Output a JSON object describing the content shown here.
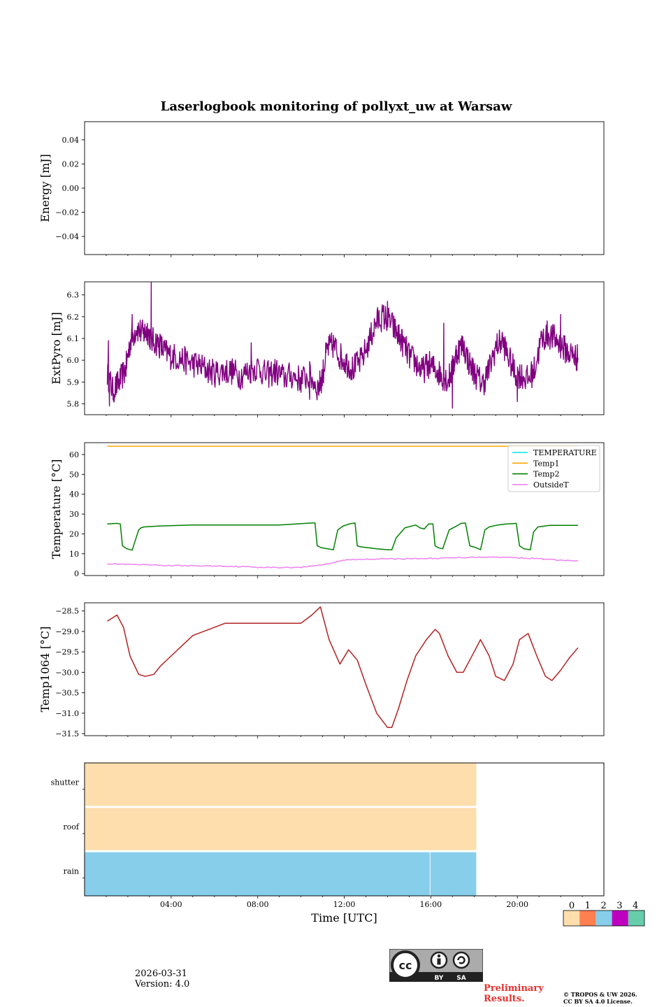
{
  "colors": {
    "temperature": "#00e5e5",
    "temp1": "#ffa500",
    "temp2": "#008000",
    "outsideT": "#ee82ee",
    "extpyro": "#800080",
    "temp1064": "#b22222",
    "status": [
      "#fddeac",
      "#ff7f50",
      "#87ceeb",
      "#bf00bf",
      "#66cdaa"
    ]
  },
  "chart_data": [
    {
      "type": "line",
      "title": "Laserlogbook monitoring of pollyxt_uw at Warsaw",
      "ylabel": "Energy [mJ]",
      "ylim": [
        -0.055,
        0.055
      ],
      "yticks": [
        "0.04",
        "0.02",
        "0.00",
        "−0.02",
        "−0.04"
      ],
      "yvals": [
        0.04,
        0.02,
        0.0,
        -0.02,
        -0.04
      ],
      "xlim": [
        0,
        24
      ],
      "series": []
    },
    {
      "type": "line",
      "ylabel": "ExtPyro [mJ]",
      "ylim": [
        5.75,
        6.36
      ],
      "yticks": [
        "6.3",
        "6.2",
        "6.1",
        "6.0",
        "5.9",
        "5.8"
      ],
      "yvals": [
        6.3,
        6.2,
        6.1,
        6.0,
        5.9,
        5.8
      ],
      "xlim": [
        0,
        24
      ],
      "series": [
        {
          "name": "ExtPyro",
          "x": [
            1.05,
            1.3,
            1.6,
            1.9,
            2.1,
            2.4,
            2.7,
            2.9,
            3.1,
            3.4,
            3.7,
            4.0,
            4.4,
            4.8,
            5.2,
            5.6,
            6.0,
            6.4,
            6.8,
            7.2,
            7.6,
            8.0,
            8.4,
            8.8,
            9.2,
            9.6,
            10.0,
            10.4,
            10.8,
            11.0,
            11.2,
            11.5,
            11.8,
            12.1,
            12.4,
            12.8,
            13.2,
            13.5,
            13.8,
            14.1,
            14.4,
            14.7,
            15.0,
            15.3,
            15.6,
            15.9,
            16.2,
            16.5,
            16.8,
            17.0,
            17.2,
            17.5,
            17.8,
            18.1,
            18.4,
            18.7,
            19.0,
            19.3,
            19.6,
            19.9,
            20.2,
            20.5,
            20.8,
            21.1,
            21.4,
            21.7,
            22.0,
            22.3,
            22.6,
            22.8
          ],
          "values": [
            5.94,
            5.86,
            5.9,
            5.96,
            6.08,
            6.15,
            6.12,
            6.14,
            6.09,
            6.08,
            6.04,
            6.02,
            6.01,
            5.99,
            5.98,
            5.96,
            5.94,
            5.95,
            5.95,
            5.93,
            5.95,
            5.97,
            5.93,
            5.95,
            5.92,
            5.93,
            5.91,
            5.93,
            5.87,
            5.93,
            6.05,
            6.07,
            6.02,
            5.99,
            5.96,
            6.0,
            6.1,
            6.18,
            6.2,
            6.18,
            6.13,
            6.08,
            6.02,
            5.99,
            5.95,
            5.98,
            5.96,
            5.93,
            5.91,
            5.96,
            6.04,
            6.07,
            5.98,
            5.93,
            5.89,
            5.96,
            6.06,
            6.09,
            6.01,
            5.94,
            5.93,
            5.91,
            5.96,
            6.09,
            6.12,
            6.1,
            6.07,
            6.04,
            6.02,
            6.01
          ],
          "spikes": [
            [
              3.08,
              6.36
            ],
            [
              1.15,
              5.79
            ],
            [
              1.35,
              5.81
            ],
            [
              14.0,
              6.27
            ],
            [
              17.0,
              5.78
            ],
            [
              20.0,
              5.81
            ],
            [
              1.1,
              6.09
            ],
            [
              2.2,
              6.21
            ],
            [
              22.0,
              6.21
            ],
            [
              16.6,
              6.17
            ],
            [
              10.4,
              5.82
            ],
            [
              7.7,
              6.08
            ]
          ]
        }
      ]
    },
    {
      "type": "line",
      "ylabel": "Temperature [°C]",
      "ylim": [
        -1,
        66
      ],
      "yticks": [
        "60",
        "50",
        "40",
        "30",
        "20",
        "10",
        "0"
      ],
      "yvals": [
        60,
        50,
        40,
        30,
        20,
        10,
        0
      ],
      "xlim": [
        0,
        24
      ],
      "legend": [
        "TEMPERATURE",
        "Temp1",
        "Temp2",
        "OutsideT"
      ],
      "legend_position": "upper right",
      "series": [
        {
          "name": "TEMPERATURE",
          "x": [],
          "values": []
        },
        {
          "name": "Temp1",
          "x": [
            1.05,
            22.8
          ],
          "values": [
            64.2,
            64.2
          ]
        },
        {
          "name": "Temp2",
          "x": [
            1.05,
            1.5,
            1.65,
            1.75,
            1.95,
            2.2,
            2.5,
            2.6,
            2.75,
            3.5,
            5.0,
            7.0,
            9.0,
            10.5,
            10.65,
            10.75,
            10.95,
            11.5,
            11.7,
            11.95,
            12.3,
            12.5,
            12.6,
            12.75,
            13.5,
            14.0,
            14.2,
            14.4,
            14.8,
            15.3,
            15.5,
            15.7,
            15.9,
            16.1,
            16.2,
            16.35,
            16.55,
            16.85,
            17.2,
            17.4,
            17.6,
            17.8,
            18.1,
            18.3,
            18.5,
            18.7,
            19.1,
            19.5,
            19.8,
            19.95,
            20.1,
            20.3,
            20.6,
            20.75,
            20.95,
            21.5,
            22.8
          ],
          "values": [
            25.0,
            25.3,
            25.0,
            14.0,
            12.5,
            11.8,
            22.0,
            23.0,
            23.5,
            24.0,
            24.5,
            24.5,
            24.5,
            25.5,
            25.5,
            14.0,
            13.0,
            12.0,
            22.0,
            24.0,
            25.2,
            25.5,
            14.0,
            13.5,
            12.5,
            12.0,
            12.0,
            18.0,
            23.0,
            24.5,
            23.0,
            22.5,
            25.0,
            25.0,
            14.0,
            13.0,
            12.5,
            22.0,
            24.0,
            25.3,
            25.5,
            14.0,
            13.0,
            12.0,
            22.0,
            23.5,
            24.5,
            25.0,
            25.2,
            25.3,
            14.0,
            12.5,
            12.0,
            21.0,
            23.5,
            24.3,
            24.3
          ]
        },
        {
          "name": "OutsideT",
          "x": [
            1.05,
            2.0,
            3.0,
            4.0,
            5.0,
            6.0,
            7.0,
            8.0,
            9.0,
            10.0,
            10.5,
            11.0,
            11.5,
            12.0,
            13.0,
            14.0,
            15.0,
            16.0,
            17.0,
            18.0,
            19.0,
            20.0,
            21.0,
            22.0,
            22.8
          ],
          "values": [
            5.0,
            4.6,
            4.3,
            4.0,
            3.9,
            3.8,
            3.6,
            3.2,
            3.0,
            3.2,
            3.8,
            4.5,
            5.5,
            6.8,
            7.3,
            7.4,
            7.5,
            7.6,
            7.9,
            8.3,
            8.3,
            8.0,
            7.5,
            6.7,
            6.3
          ]
        }
      ]
    },
    {
      "type": "line",
      "ylabel": "Temp1064 [°C]",
      "ylim": [
        -31.55,
        -28.3
      ],
      "yticks": [
        "−28.5",
        "−29.0",
        "−29.5",
        "−30.0",
        "−30.5",
        "−31.0",
        "−31.5"
      ],
      "yvals": [
        -28.5,
        -29.0,
        -29.5,
        -30.0,
        -30.5,
        -31.0,
        -31.5
      ],
      "xlim": [
        0,
        24
      ],
      "series": [
        {
          "name": "Temp1064",
          "x": [
            1.05,
            1.5,
            1.8,
            2.1,
            2.5,
            2.8,
            3.2,
            3.5,
            4.0,
            4.5,
            5.0,
            5.5,
            6.0,
            6.5,
            7.0,
            8.0,
            9.0,
            10.0,
            10.5,
            10.9,
            11.3,
            11.8,
            12.2,
            12.6,
            13.0,
            13.5,
            14.0,
            14.2,
            14.5,
            14.9,
            15.3,
            15.8,
            16.2,
            16.4,
            16.8,
            17.2,
            17.5,
            18.0,
            18.3,
            18.7,
            19.0,
            19.4,
            19.8,
            20.1,
            20.5,
            20.9,
            21.3,
            21.6,
            22.0,
            22.4,
            22.8
          ],
          "values": [
            -28.75,
            -28.6,
            -28.9,
            -29.6,
            -30.05,
            -30.1,
            -30.05,
            -29.85,
            -29.6,
            -29.35,
            -29.1,
            -29.0,
            -28.9,
            -28.8,
            -28.8,
            -28.8,
            -28.8,
            -28.8,
            -28.6,
            -28.4,
            -29.2,
            -29.8,
            -29.45,
            -29.7,
            -30.3,
            -31.0,
            -31.35,
            -31.35,
            -30.9,
            -30.2,
            -29.6,
            -29.2,
            -28.95,
            -29.05,
            -29.6,
            -30.0,
            -30.0,
            -29.5,
            -29.2,
            -29.6,
            -30.1,
            -30.2,
            -29.8,
            -29.2,
            -29.05,
            -29.6,
            -30.1,
            -30.2,
            -29.95,
            -29.65,
            -29.4
          ]
        }
      ]
    },
    {
      "type": "heatmap",
      "rows": [
        "shutter",
        "roof",
        "rain"
      ],
      "xlabel": "Time [UTC]",
      "xticks": [
        "04:00",
        "08:00",
        "12:00",
        "16:00",
        "20:00"
      ],
      "xvals": [
        4,
        8,
        12,
        16,
        20
      ],
      "xlim": [
        0,
        24
      ],
      "segments": [
        {
          "row": "shutter",
          "start": 0,
          "end": 18.1,
          "status": 0
        },
        {
          "row": "roof",
          "start": 0,
          "end": 18.1,
          "status": 0
        },
        {
          "row": "rain",
          "start": 0,
          "end": 15.95,
          "status": 2
        },
        {
          "row": "rain",
          "start": 15.98,
          "end": 18.1,
          "status": 2
        }
      ],
      "colorbar": {
        "ticks": [
          "0",
          "1",
          "2",
          "3",
          "4"
        ]
      }
    }
  ],
  "footer": {
    "date": "2026-03-31",
    "version": "Version: 4.0",
    "preliminary": [
      "Preliminary",
      "Results."
    ],
    "copyright": [
      "© TROPOS & UW 2026.",
      "CC BY SA 4.0 License."
    ],
    "cc_badge": [
      "BY",
      "SA"
    ]
  }
}
